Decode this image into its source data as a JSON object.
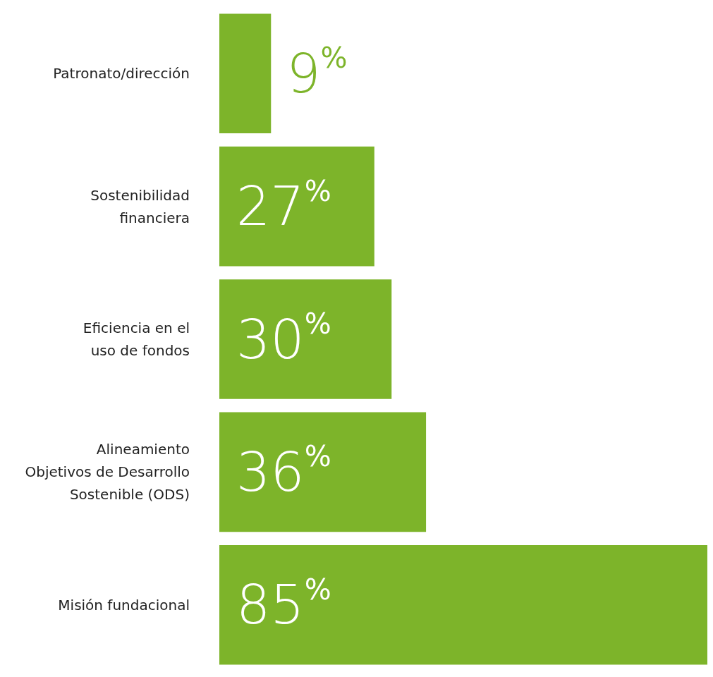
{
  "chart_data": {
    "type": "bar",
    "orientation": "horizontal",
    "categories": [
      "Patronato/dirección",
      "Sostenibilidad\nfinanciera",
      "Eficiencia en el\nuso de fondos",
      "Alineamiento\nObjetivos de Desarrollo\nSostenible (ODS)",
      "Misión fundacional"
    ],
    "values": [
      9,
      27,
      30,
      36,
      85
    ],
    "value_labels": [
      "9%",
      "27%",
      "30%",
      "36%",
      "85%"
    ],
    "color": "#7db42a"
  }
}
